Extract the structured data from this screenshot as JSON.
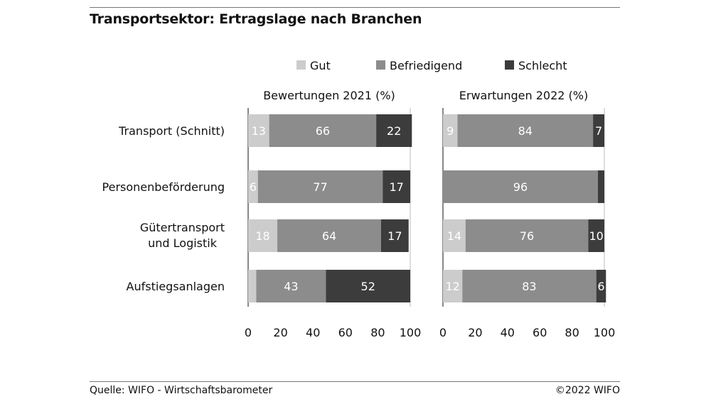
{
  "title": "Transportsektor: Ertragslage nach Branchen",
  "source": "Quelle: WIFO - Wirtschaftsbarometer",
  "copyright": "©2022 WIFO",
  "colors": {
    "gut": "#cccccc",
    "befriedigend": "#8c8c8c",
    "schlecht": "#3c3c3c"
  },
  "chart_data": {
    "type": "bar",
    "orientation": "horizontal",
    "stacked": true,
    "legend": [
      "Gut",
      "Befriedigend",
      "Schlecht"
    ],
    "legend_position": "top",
    "categories": [
      "Transport (Schnitt)",
      "Personenbeförderung",
      "Gütertransport und Logistik",
      "Aufstiegsanlagen"
    ],
    "xlim": [
      0,
      100
    ],
    "xticks": [
      0,
      20,
      40,
      60,
      80,
      100
    ],
    "panels": [
      {
        "title": "Bewertungen 2021 (%)",
        "series": [
          {
            "name": "Gut",
            "values": [
              13,
              6,
              18,
              5
            ]
          },
          {
            "name": "Befriedigend",
            "values": [
              66,
              77,
              64,
              43
            ]
          },
          {
            "name": "Schlecht",
            "values": [
              22,
              17,
              17,
              52
            ]
          }
        ],
        "labels": [
          [
            "13",
            "66",
            "22"
          ],
          [
            "6",
            "77",
            "17"
          ],
          [
            "18",
            "64",
            "17"
          ],
          [
            "",
            "43",
            "52"
          ]
        ]
      },
      {
        "title": "Erwartungen 2022 (%)",
        "series": [
          {
            "name": "Gut",
            "values": [
              9,
              0,
              14,
              12
            ]
          },
          {
            "name": "Befriedigend",
            "values": [
              84,
              96,
              76,
              83
            ]
          },
          {
            "name": "Schlecht",
            "values": [
              7,
              4,
              10,
              6
            ]
          }
        ],
        "labels": [
          [
            "9",
            "84",
            "7"
          ],
          [
            "",
            "96",
            ""
          ],
          [
            "14",
            "76",
            "10"
          ],
          [
            "12",
            "83",
            "6"
          ]
        ]
      }
    ]
  }
}
